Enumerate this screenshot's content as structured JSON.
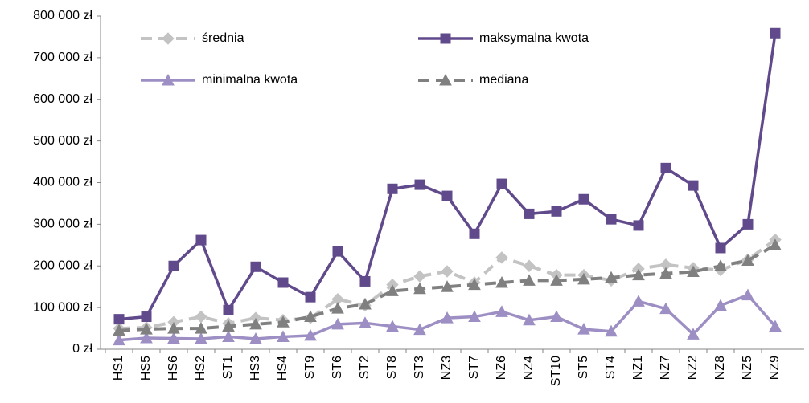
{
  "chart_data": {
    "type": "line",
    "categories": [
      "HS1",
      "HS5",
      "HS6",
      "HS2",
      "ST1",
      "HS3",
      "HS4",
      "ST9",
      "ST6",
      "ST2",
      "ST8",
      "ST3",
      "NZ3",
      "ST7",
      "NZ6",
      "NZ4",
      "ST10",
      "ST5",
      "ST4",
      "NZ1",
      "NZ7",
      "NZ2",
      "NZ8",
      "NZ5",
      "NZ9"
    ],
    "series": [
      {
        "name": "średnia",
        "color": "#c3c3c3",
        "dashed": true,
        "marker": "diamond",
        "values": [
          50000,
          52000,
          65000,
          78000,
          62000,
          75000,
          70000,
          75000,
          120000,
          105000,
          155000,
          175000,
          187000,
          160000,
          220000,
          200000,
          178000,
          178000,
          165000,
          193000,
          203000,
          195000,
          190000,
          215000,
          263000
        ]
      },
      {
        "name": "maksymalna kwota",
        "color": "#604a8b",
        "dashed": false,
        "marker": "square",
        "values": [
          72000,
          78000,
          200000,
          262000,
          94000,
          198000,
          160000,
          125000,
          235000,
          163000,
          385000,
          395000,
          368000,
          277000,
          397000,
          325000,
          331000,
          360000,
          312000,
          297000,
          435000,
          393000,
          243000,
          300000,
          759000
        ]
      },
      {
        "name": "minimalna kwota",
        "color": "#9d8fc4",
        "dashed": false,
        "marker": "triangle",
        "values": [
          22000,
          27000,
          26000,
          25000,
          30000,
          25000,
          30000,
          33000,
          60000,
          63000,
          55000,
          47000,
          75000,
          78000,
          90000,
          70000,
          78000,
          48000,
          43000,
          115000,
          97000,
          36000,
          105000,
          130000,
          55000
        ]
      },
      {
        "name": "mediana",
        "color": "#808080",
        "dashed": true,
        "marker": "triangle",
        "values": [
          45000,
          48000,
          50000,
          50000,
          55000,
          60000,
          65000,
          78000,
          98000,
          108000,
          140000,
          145000,
          150000,
          155000,
          160000,
          165000,
          165000,
          168000,
          172000,
          178000,
          182000,
          186000,
          200000,
          213000,
          250000
        ]
      }
    ],
    "ylim": [
      0,
      800000
    ],
    "yticks": [
      {
        "value": 0,
        "label": "0 zł"
      },
      {
        "value": 100000,
        "label": "100 000 zł"
      },
      {
        "value": 200000,
        "label": "200 000 zł"
      },
      {
        "value": 300000,
        "label": "300 000 zł"
      },
      {
        "value": 400000,
        "label": "400 000 zł"
      },
      {
        "value": 500000,
        "label": "500 000 zł"
      },
      {
        "value": 600000,
        "label": "600 000 zł"
      },
      {
        "value": 700000,
        "label": "700 000 zł"
      },
      {
        "value": 800000,
        "label": "800 000 zł"
      }
    ],
    "grid": false
  }
}
